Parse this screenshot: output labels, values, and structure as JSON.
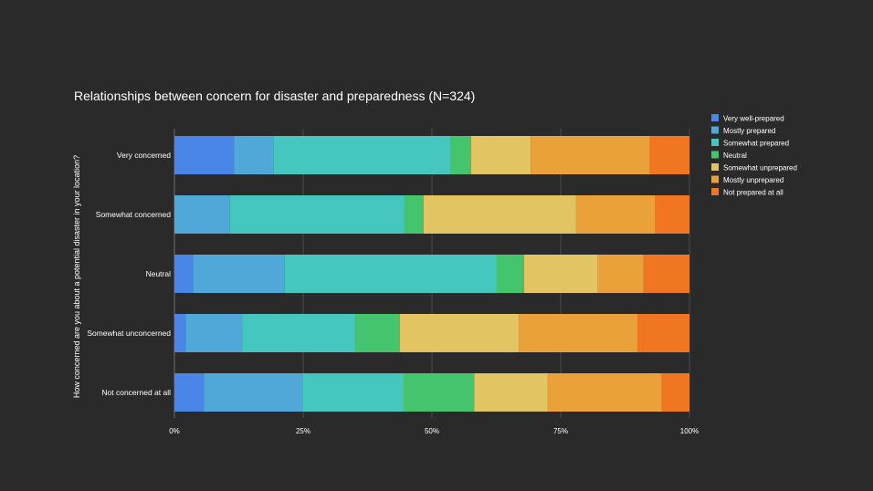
{
  "chart_data": {
    "type": "bar",
    "orientation": "horizontal",
    "stacked": true,
    "title": "Relationships between concern for disaster and preparedness (N=324)",
    "xlabel": "",
    "ylabel": "How concerned are you about a potential disaster in your location?",
    "xlim": [
      0,
      100
    ],
    "x_ticks": [
      {
        "value": 0,
        "label": "0%"
      },
      {
        "value": 25,
        "label": "25%"
      },
      {
        "value": 50,
        "label": "50%"
      },
      {
        "value": 75,
        "label": "75%"
      },
      {
        "value": 100,
        "label": "100%"
      }
    ],
    "categories": [
      "Very concerned",
      "Somewhat concerned",
      "Neutral",
      "Somewhat unconcerned",
      "Not concerned at all"
    ],
    "series": [
      {
        "name": "Very well-prepared",
        "color": "#4a86e8",
        "values": [
          11.6,
          0,
          3.6,
          2.2,
          5.7
        ]
      },
      {
        "name": "Mostly prepared",
        "color": "#4fa8d8",
        "values": [
          7.6,
          10.8,
          17.8,
          11.0,
          19.3
        ]
      },
      {
        "name": "Somewhat prepared",
        "color": "#45c7c0",
        "values": [
          34.5,
          34.0,
          41.1,
          21.9,
          19.5
        ]
      },
      {
        "name": "Neutral",
        "color": "#45c46e",
        "values": [
          3.9,
          3.6,
          5.4,
          8.7,
          13.7
        ]
      },
      {
        "name": "Somewhat unprepared",
        "color": "#e3c462",
        "values": [
          11.6,
          29.6,
          14.3,
          23.1,
          14.3
        ]
      },
      {
        "name": "Mostly unprepared",
        "color": "#eba13a",
        "values": [
          23.1,
          15.4,
          8.9,
          23.0,
          22.1
        ]
      },
      {
        "name": "Not prepared at all",
        "color": "#f07621",
        "values": [
          7.7,
          6.6,
          8.9,
          10.1,
          5.4
        ]
      }
    ],
    "grid": true,
    "legend_position": "top-right"
  }
}
